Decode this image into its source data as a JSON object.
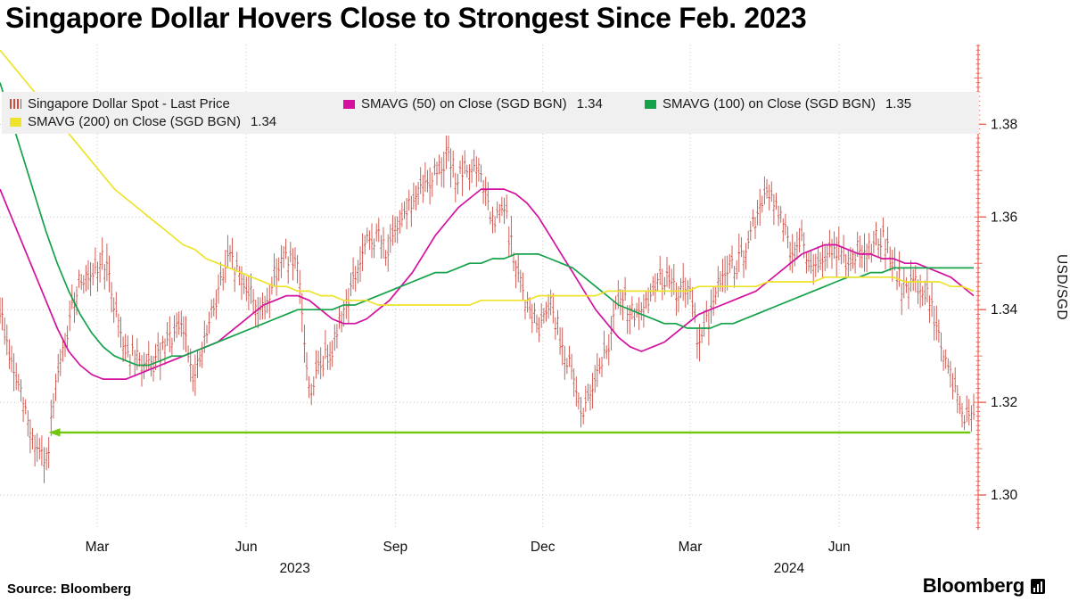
{
  "title": "Singapore Dollar Hovers Close to Strongest Since Feb. 2023",
  "source": "Source: Bloomberg",
  "brand": "Bloomberg",
  "y_axis_label": "USD/SGD",
  "legend": [
    {
      "swatch": "bars",
      "color": "#d24a3e",
      "label": "Singapore Dollar Spot - Last Price",
      "value": ""
    },
    {
      "swatch": "line",
      "color": "#d4119e",
      "label": "SMAVG (50)  on Close (SGD BGN)",
      "value": "1.34"
    },
    {
      "swatch": "line",
      "color": "#15a24a",
      "label": "SMAVG (100)  on Close (SGD BGN)",
      "value": "1.35"
    },
    {
      "swatch": "line",
      "color": "#ede32a",
      "label": "SMAVG (200)  on Close (SGD BGN)",
      "value": "1.34"
    }
  ],
  "chart_data": {
    "type": "candlestick",
    "description": "Daily USD/SGD OHLC bars with 50/100/200-day simple moving averages; values below are weekly samples read from the chart",
    "x_range": [
      "2022-12-31",
      "2024-08-23"
    ],
    "ylim": [
      1.2925,
      1.3972
    ],
    "y_ticks": [
      {
        "value": 1.3,
        "label": "1.30"
      },
      {
        "value": 1.32,
        "label": "1.32"
      },
      {
        "value": 1.34,
        "label": "1.34"
      },
      {
        "value": 1.36,
        "label": "1.36"
      },
      {
        "value": 1.38,
        "label": "1.38"
      }
    ],
    "x_ticks": [
      {
        "label": "Mar",
        "date": "2023-03-01"
      },
      {
        "label": "Jun",
        "date": "2023-06-01"
      },
      {
        "label": "Sep",
        "date": "2023-09-01"
      },
      {
        "label": "Dec",
        "date": "2023-12-01"
      },
      {
        "label": "Mar",
        "date": "2024-03-01"
      },
      {
        "label": "Jun",
        "date": "2024-06-01"
      }
    ],
    "year_labels": [
      {
        "label": "2023",
        "date": "2023-07-01"
      },
      {
        "label": "2024",
        "date": "2024-05-01"
      }
    ],
    "colors": {
      "grid": "#c9c9c9",
      "axis": "#f0685c"
    },
    "series": [
      {
        "name": "Singapore Dollar Spot - Last Price",
        "type": "ohlc_bars",
        "color": "#c8463c",
        "sample_interval_days": 7,
        "start_date": "2023-01-06",
        "closes": [
          1.34,
          1.328,
          1.32,
          1.311,
          1.306,
          1.325,
          1.336,
          1.348,
          1.345,
          1.352,
          1.341,
          1.331,
          1.329,
          1.327,
          1.33,
          1.334,
          1.336,
          1.325,
          1.334,
          1.344,
          1.351,
          1.347,
          1.343,
          1.339,
          1.348,
          1.352,
          1.348,
          1.322,
          1.328,
          1.332,
          1.34,
          1.347,
          1.354,
          1.356,
          1.352,
          1.361,
          1.363,
          1.366,
          1.37,
          1.373,
          1.368,
          1.371,
          1.369,
          1.358,
          1.362,
          1.349,
          1.341,
          1.336,
          1.343,
          1.333,
          1.325,
          1.317,
          1.327,
          1.331,
          1.343,
          1.34,
          1.338,
          1.345,
          1.347,
          1.344,
          1.345,
          1.333,
          1.339,
          1.348,
          1.349,
          1.351,
          1.36,
          1.365,
          1.361,
          1.353,
          1.355,
          1.348,
          1.351,
          1.353,
          1.35,
          1.353,
          1.354,
          1.356,
          1.349,
          1.344,
          1.346,
          1.343,
          1.334,
          1.325,
          1.318,
          1.316
        ]
      },
      {
        "name": "SMAVG (50) on Close (SGD BGN)",
        "type": "line",
        "color": "#d4119e",
        "last_value": 1.34,
        "values": [
          1.366,
          1.36,
          1.354,
          1.348,
          1.342,
          1.336,
          1.331,
          1.328,
          1.326,
          1.325,
          1.325,
          1.325,
          1.326,
          1.327,
          1.328,
          1.329,
          1.33,
          1.331,
          1.332,
          1.333,
          1.335,
          1.337,
          1.339,
          1.341,
          1.342,
          1.343,
          1.343,
          1.342,
          1.34,
          1.338,
          1.337,
          1.337,
          1.338,
          1.34,
          1.342,
          1.345,
          1.348,
          1.352,
          1.356,
          1.359,
          1.362,
          1.364,
          1.366,
          1.366,
          1.366,
          1.365,
          1.363,
          1.36,
          1.356,
          1.352,
          1.348,
          1.344,
          1.34,
          1.337,
          1.334,
          1.332,
          1.331,
          1.332,
          1.333,
          1.335,
          1.337,
          1.339,
          1.34,
          1.341,
          1.342,
          1.343,
          1.344,
          1.346,
          1.348,
          1.35,
          1.352,
          1.353,
          1.354,
          1.354,
          1.353,
          1.352,
          1.352,
          1.351,
          1.351,
          1.35,
          1.35,
          1.349,
          1.348,
          1.347,
          1.345,
          1.343
        ]
      },
      {
        "name": "SMAVG (100) on Close (SGD BGN)",
        "type": "line",
        "color": "#15a24a",
        "last_value": 1.35,
        "values": [
          1.389,
          1.381,
          1.373,
          1.365,
          1.357,
          1.35,
          1.344,
          1.339,
          1.335,
          1.332,
          1.33,
          1.329,
          1.328,
          1.328,
          1.329,
          1.33,
          1.33,
          1.331,
          1.332,
          1.333,
          1.334,
          1.335,
          1.336,
          1.337,
          1.338,
          1.339,
          1.34,
          1.34,
          1.34,
          1.34,
          1.341,
          1.341,
          1.342,
          1.343,
          1.344,
          1.345,
          1.346,
          1.347,
          1.348,
          1.348,
          1.349,
          1.35,
          1.35,
          1.351,
          1.351,
          1.352,
          1.352,
          1.352,
          1.351,
          1.35,
          1.349,
          1.347,
          1.345,
          1.343,
          1.341,
          1.34,
          1.339,
          1.338,
          1.337,
          1.337,
          1.336,
          1.336,
          1.336,
          1.337,
          1.337,
          1.338,
          1.339,
          1.34,
          1.341,
          1.342,
          1.343,
          1.344,
          1.345,
          1.346,
          1.347,
          1.347,
          1.348,
          1.348,
          1.349,
          1.349,
          1.349,
          1.349,
          1.349,
          1.349,
          1.349,
          1.349
        ]
      },
      {
        "name": "SMAVG (200) on Close (SGD BGN)",
        "type": "line",
        "color": "#ede32a",
        "last_value": 1.34,
        "values": [
          1.396,
          1.393,
          1.39,
          1.387,
          1.384,
          1.381,
          1.378,
          1.375,
          1.372,
          1.369,
          1.366,
          1.364,
          1.362,
          1.36,
          1.358,
          1.356,
          1.354,
          1.353,
          1.351,
          1.35,
          1.349,
          1.348,
          1.347,
          1.346,
          1.345,
          1.345,
          1.344,
          1.344,
          1.343,
          1.343,
          1.342,
          1.342,
          1.342,
          1.341,
          1.341,
          1.341,
          1.341,
          1.341,
          1.341,
          1.341,
          1.341,
          1.341,
          1.342,
          1.342,
          1.342,
          1.342,
          1.342,
          1.343,
          1.343,
          1.343,
          1.343,
          1.343,
          1.343,
          1.344,
          1.344,
          1.344,
          1.344,
          1.344,
          1.344,
          1.344,
          1.344,
          1.345,
          1.345,
          1.345,
          1.345,
          1.345,
          1.345,
          1.346,
          1.346,
          1.346,
          1.346,
          1.346,
          1.347,
          1.347,
          1.347,
          1.347,
          1.347,
          1.347,
          1.347,
          1.346,
          1.346,
          1.346,
          1.346,
          1.345,
          1.345,
          1.344
        ]
      }
    ],
    "annotation_arrow": {
      "meaning": "horizontal reference arrow pointing left toward the Feb. 2023 strong-SGD level",
      "y": 1.3135,
      "date_from": "2024-08-21",
      "date_to": "2023-01-30",
      "color": "#6fc70e"
    }
  }
}
